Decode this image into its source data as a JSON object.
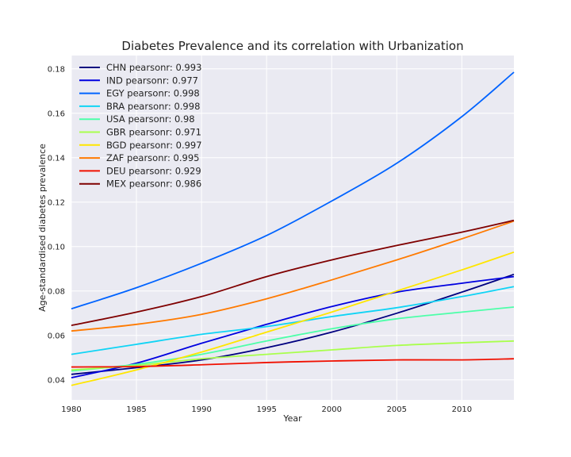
{
  "chart_data": {
    "type": "line",
    "title": "Diabetes Prevalence and its correlation with Urbanization",
    "xlabel": "Year",
    "ylabel": "Age-standardised diabetes prevalence",
    "xlim": [
      1980,
      2014
    ],
    "ylim": [
      0.031,
      0.186
    ],
    "xticks": [
      1980,
      1985,
      1990,
      1995,
      2000,
      2005,
      2010
    ],
    "yticks": [
      0.04,
      0.06,
      0.08,
      0.1,
      0.12,
      0.14,
      0.16,
      0.18
    ],
    "ytick_labels": [
      "0.04",
      "0.06",
      "0.08",
      "0.10",
      "0.12",
      "0.14",
      "0.16",
      "0.18"
    ],
    "grid": true,
    "legend_position": "top-left",
    "x": [
      1980,
      1985,
      1990,
      1995,
      2000,
      2005,
      2010,
      2014
    ],
    "series": [
      {
        "name": "CHN pearsonr: 0.993",
        "color": "#00007f",
        "values": [
          0.0425,
          0.0455,
          0.049,
          0.0545,
          0.0615,
          0.07,
          0.0795,
          0.0875
        ]
      },
      {
        "name": "IND pearsonr: 0.977",
        "color": "#0000e0",
        "values": [
          0.041,
          0.0475,
          0.0565,
          0.065,
          0.073,
          0.0795,
          0.0835,
          0.0865
        ]
      },
      {
        "name": "EGY pearsonr: 0.998",
        "color": "#0063ff",
        "values": [
          0.072,
          0.0815,
          0.0925,
          0.105,
          0.1205,
          0.1375,
          0.1585,
          0.1785
        ]
      },
      {
        "name": "BRA pearsonr: 0.998",
        "color": "#10d4f5",
        "values": [
          0.0515,
          0.056,
          0.0605,
          0.064,
          0.0685,
          0.0725,
          0.0775,
          0.082
        ]
      },
      {
        "name": "USA pearsonr: 0.98",
        "color": "#4dffa9",
        "values": [
          0.044,
          0.047,
          0.0515,
          0.0575,
          0.063,
          0.0675,
          0.0705,
          0.0728
        ]
      },
      {
        "name": "GBR pearsonr: 0.971",
        "color": "#a9ff4d",
        "values": [
          0.0445,
          0.0465,
          0.0495,
          0.0515,
          0.0535,
          0.0555,
          0.0567,
          0.0575
        ]
      },
      {
        "name": "BGD pearsonr: 0.997",
        "color": "#ffe600",
        "values": [
          0.0375,
          0.0445,
          0.0525,
          0.0615,
          0.0705,
          0.08,
          0.0895,
          0.0975
        ]
      },
      {
        "name": "ZAF pearsonr: 0.995",
        "color": "#ff7a00",
        "values": [
          0.062,
          0.065,
          0.0695,
          0.0765,
          0.085,
          0.094,
          0.1035,
          0.1115
        ]
      },
      {
        "name": "DEU pearsonr: 0.929",
        "color": "#f01000",
        "values": [
          0.0458,
          0.046,
          0.0468,
          0.0478,
          0.0485,
          0.049,
          0.049,
          0.0495
        ]
      },
      {
        "name": "MEX pearsonr: 0.986",
        "color": "#7f0000",
        "values": [
          0.0645,
          0.0705,
          0.0775,
          0.0865,
          0.094,
          0.1005,
          0.1065,
          0.1118
        ]
      }
    ]
  }
}
